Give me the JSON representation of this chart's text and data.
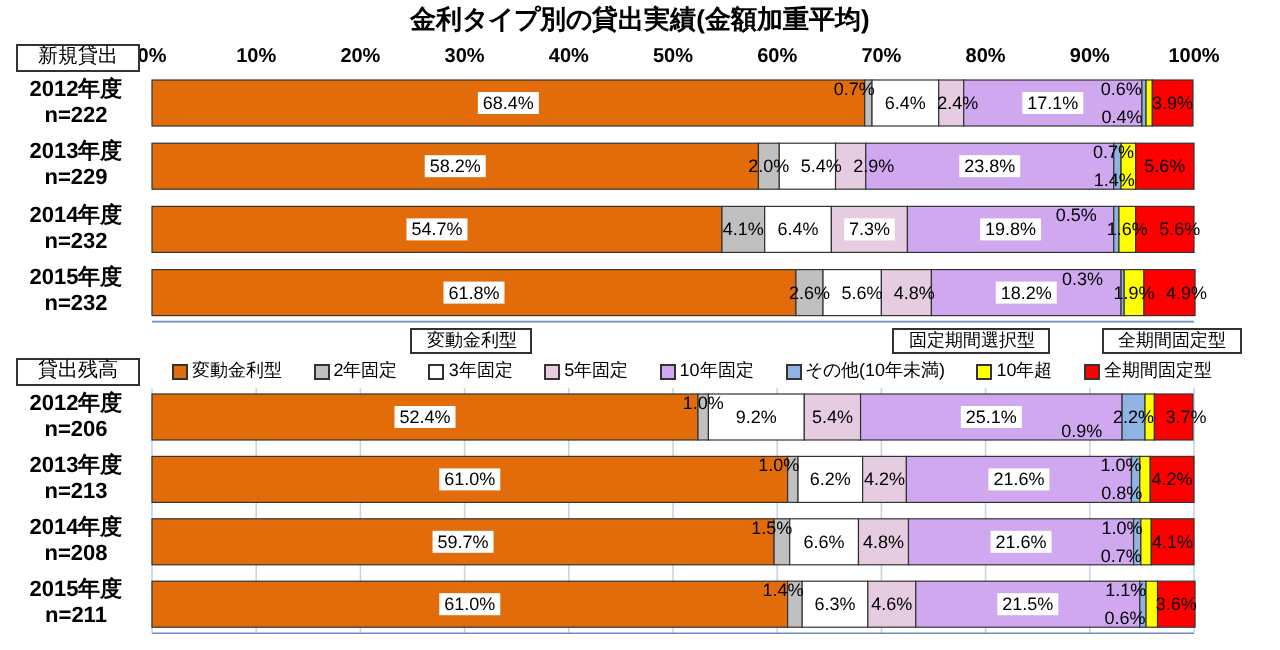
{
  "chart_data": [
    {
      "type": "bar",
      "orientation": "horizontal",
      "stacked": true,
      "title": "金利タイプ別の貸出実績(金額加重平均)",
      "subtitle": "新規貸出",
      "categories": [
        "2012年度 n=222",
        "2013年度 n=229",
        "2014年度 n=232",
        "2015年度 n=232"
      ],
      "xlim": [
        0,
        100
      ],
      "xticks": [
        {
          "value": 0,
          "label": "0%"
        },
        {
          "value": 10,
          "label": "10%"
        },
        {
          "value": 20,
          "label": "20%"
        },
        {
          "value": 30,
          "label": "30%"
        },
        {
          "value": 40,
          "label": "40%"
        },
        {
          "value": 50,
          "label": "50%"
        },
        {
          "value": 60,
          "label": "60%"
        },
        {
          "value": 70,
          "label": "70%"
        },
        {
          "value": 80,
          "label": "80%"
        },
        {
          "value": 90,
          "label": "90%"
        },
        {
          "value": 100,
          "label": "100%"
        }
      ],
      "series": [
        {
          "color": "#e36c0a",
          "values": [
            68.4,
            58.2,
            54.7,
            61.8
          ],
          "value_labels": [
            "68.4%",
            "58.2%",
            "54.7%",
            "61.8%"
          ]
        },
        {
          "color": "#c0c0c0",
          "values": [
            0.7,
            2.0,
            4.1,
            2.6
          ],
          "value_labels": [
            "0.7%",
            "2.0%",
            "4.1%",
            "2.6%"
          ]
        },
        {
          "color": "#ffffff",
          "values": [
            6.4,
            5.4,
            6.4,
            5.6
          ],
          "value_labels": [
            "6.4%",
            "5.4%",
            "6.4%",
            "5.6%"
          ]
        },
        {
          "color": "#e6cce0",
          "values": [
            2.4,
            2.9,
            7.3,
            4.8
          ],
          "value_labels": [
            "2.4%",
            "2.9%",
            "7.3%",
            "4.8%"
          ]
        },
        {
          "color": "#cfa8f0",
          "values": [
            17.1,
            23.8,
            19.8,
            18.2
          ],
          "value_labels": [
            "17.1%",
            "23.8%",
            "19.8%",
            "18.2%"
          ]
        },
        {
          "color": "#8db4e2",
          "values": [
            0.4,
            0.7,
            0.5,
            0.3
          ],
          "value_labels": [
            "0.4%",
            "0.7%",
            "0.5%",
            "0.3%"
          ]
        },
        {
          "color": "#ffff00",
          "values": [
            0.6,
            1.4,
            1.6,
            1.9
          ],
          "value_labels": [
            "0.6%",
            "1.4%",
            "1.6%",
            "1.9%"
          ]
        },
        {
          "color": "#ff0000",
          "values": [
            3.9,
            5.6,
            5.6,
            4.9
          ],
          "value_labels": [
            "3.9%",
            "5.6%",
            "5.6%",
            "4.9%"
          ]
        }
      ]
    },
    {
      "type": "bar",
      "orientation": "horizontal",
      "stacked": true,
      "subtitle": "貸出残高",
      "categories": [
        "2012年度 n=206",
        "2013年度 n=213",
        "2014年度 n=208",
        "2015年度 n=211"
      ],
      "xlim": [
        0,
        100
      ],
      "xticks": [
        {
          "value": 0,
          "label": null
        },
        {
          "value": 10,
          "label": null
        },
        {
          "value": 20,
          "label": null
        },
        {
          "value": 30,
          "label": null
        },
        {
          "value": 40,
          "label": null
        },
        {
          "value": 50,
          "label": null
        },
        {
          "value": 60,
          "label": null
        },
        {
          "value": 70,
          "label": null
        },
        {
          "value": 80,
          "label": null
        },
        {
          "value": 90,
          "label": null
        },
        {
          "value": 100,
          "label": null
        }
      ],
      "tick_labels": "y",
      "grid": "x",
      "legend": "top",
      "annotations": [
        "変動金利型",
        "固定期間選択型",
        "全期間固定型"
      ],
      "series": [
        {
          "name": "変動金利型",
          "color": "#e36c0a",
          "values": [
            52.4,
            61.0,
            59.7,
            61.0
          ],
          "value_labels": [
            "52.4%",
            "61.0%",
            "59.7%",
            "61.0%"
          ]
        },
        {
          "name": "2年固定",
          "color": "#c0c0c0",
          "values": [
            1.0,
            1.0,
            1.5,
            1.4
          ],
          "value_labels": [
            "1.0%",
            "1.0%",
            "1.5%",
            "1.4%"
          ]
        },
        {
          "name": "3年固定",
          "color": "#ffffff",
          "values": [
            9.2,
            6.2,
            6.6,
            6.3
          ],
          "value_labels": [
            "9.2%",
            "6.2%",
            "6.6%",
            "6.3%"
          ]
        },
        {
          "name": "5年固定",
          "color": "#e6cce0",
          "values": [
            5.4,
            4.2,
            4.8,
            4.6
          ],
          "value_labels": [
            "5.4%",
            "4.2%",
            "4.8%",
            "4.6%"
          ]
        },
        {
          "name": "10年固定",
          "color": "#cfa8f0",
          "values": [
            25.1,
            21.6,
            21.6,
            21.5
          ],
          "value_labels": [
            "25.1%",
            "21.6%",
            "21.6%",
            "21.5%"
          ]
        },
        {
          "name": "その他(10年未満)",
          "color": "#8db4e2",
          "values": [
            2.2,
            0.8,
            0.7,
            0.6
          ],
          "value_labels": [
            "2.2%",
            "0.8%",
            "0.7%",
            "0.6%"
          ]
        },
        {
          "name": "10年超",
          "color": "#ffff00",
          "values": [
            0.9,
            1.0,
            1.0,
            1.1
          ],
          "value_labels": [
            "0.9%",
            "1.0%",
            "1.0%",
            "1.1%"
          ]
        },
        {
          "name": "全期間固定型",
          "color": "#ff0000",
          "values": [
            3.7,
            4.2,
            4.1,
            3.6
          ],
          "value_labels": [
            "3.7%",
            "4.2%",
            "4.1%",
            "3.6%"
          ]
        }
      ]
    }
  ]
}
